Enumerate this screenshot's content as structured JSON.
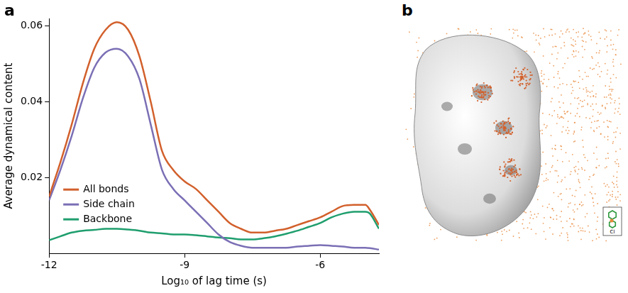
{
  "chart_data": {
    "type": "line",
    "x_label": "Log₁₀ of lag time (s)",
    "y_label": "Average dynamical content",
    "x": [
      -12,
      -11.75,
      -11.5,
      -11.25,
      -11,
      -10.75,
      -10.5,
      -10.25,
      -10,
      -9.75,
      -9.5,
      -9.25,
      -9,
      -8.75,
      -8.5,
      -8.25,
      -8,
      -7.75,
      -7.5,
      -7.25,
      -7,
      -6.75,
      -6.5,
      -6.25,
      -6,
      -5.75,
      -5.5,
      -5.25,
      -5,
      -4.9,
      -4.7
    ],
    "series": [
      {
        "name": "All bonds",
        "color": "#d2602c",
        "values": [
          0.015,
          0.024,
          0.034,
          0.045,
          0.054,
          0.059,
          0.061,
          0.059,
          0.052,
          0.04,
          0.027,
          0.022,
          0.019,
          0.017,
          0.014,
          0.011,
          0.008,
          0.0065,
          0.0055,
          0.0055,
          0.006,
          0.0065,
          0.0075,
          0.0085,
          0.0095,
          0.011,
          0.0125,
          0.0128,
          0.0128,
          0.0115,
          0.0075
        ]
      },
      {
        "name": "Side chain",
        "color": "#7b6fb5",
        "values": [
          0.014,
          0.022,
          0.031,
          0.041,
          0.049,
          0.053,
          0.054,
          0.052,
          0.046,
          0.034,
          0.022,
          0.017,
          0.014,
          0.011,
          0.008,
          0.005,
          0.003,
          0.002,
          0.0015,
          0.0015,
          0.0015,
          0.0015,
          0.0018,
          0.002,
          0.0022,
          0.002,
          0.0018,
          0.0015,
          0.0015,
          0.0014,
          0.001
        ]
      },
      {
        "name": "Backbone",
        "color": "#1f9e6e",
        "values": [
          0.0035,
          0.0045,
          0.0055,
          0.006,
          0.0062,
          0.0065,
          0.0065,
          0.0063,
          0.006,
          0.0055,
          0.0053,
          0.005,
          0.005,
          0.0048,
          0.0045,
          0.0042,
          0.004,
          0.0037,
          0.0037,
          0.004,
          0.0045,
          0.0052,
          0.006,
          0.007,
          0.008,
          0.0095,
          0.0105,
          0.011,
          0.011,
          0.0105,
          0.0065
        ]
      }
    ],
    "xlim": [
      -12,
      -4.7
    ],
    "xticks": [
      -12,
      -9,
      -6
    ],
    "ylim": [
      0,
      0.062
    ],
    "yticks": [
      0.02,
      0.04,
      0.06
    ],
    "grid": false,
    "legend": "left"
  },
  "panels": [
    "a",
    "b"
  ],
  "panel_b": {
    "inset_label": "Cl"
  }
}
